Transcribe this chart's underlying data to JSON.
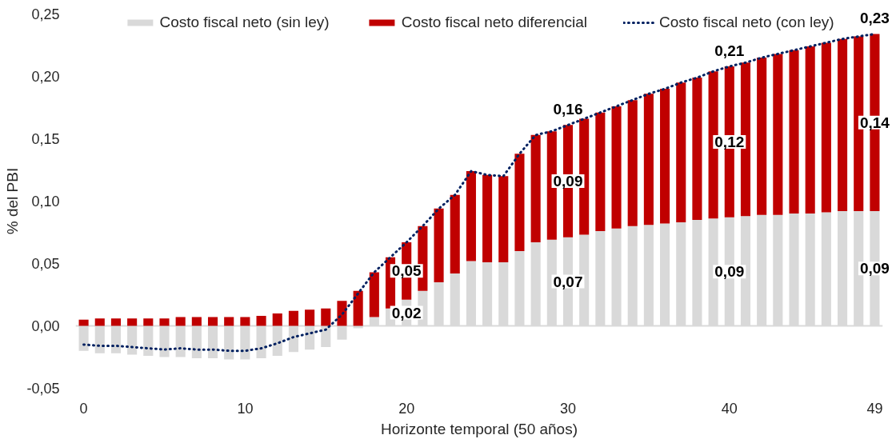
{
  "chart_data": {
    "type": "bar",
    "stacked": true,
    "xlabel": "Horizonte temporal (50 años)",
    "ylabel": "% del PBI",
    "legend": "top",
    "x": [
      0,
      1,
      2,
      3,
      4,
      5,
      6,
      7,
      8,
      9,
      10,
      11,
      12,
      13,
      14,
      15,
      16,
      17,
      18,
      19,
      20,
      21,
      22,
      23,
      24,
      25,
      26,
      27,
      28,
      29,
      30,
      31,
      32,
      33,
      34,
      35,
      36,
      37,
      38,
      39,
      40,
      41,
      42,
      43,
      44,
      45,
      46,
      47,
      48,
      49
    ],
    "xlim": [
      -0.5,
      49.5
    ],
    "xticks": [
      0,
      10,
      20,
      30,
      40,
      49
    ],
    "ylim": [
      -0.05,
      0.25
    ],
    "yticks": [
      {
        "value": -0.05,
        "label": "-0,05"
      },
      {
        "value": 0,
        "label": "0,00"
      },
      {
        "value": 0.05,
        "label": "0,05"
      },
      {
        "value": 0.1,
        "label": "0,10"
      },
      {
        "value": 0.15,
        "label": "0,15"
      },
      {
        "value": 0.2,
        "label": "0,20"
      },
      {
        "value": 0.25,
        "label": "0,25"
      }
    ],
    "ref_lines": [
      {
        "axis": "y",
        "value": 0,
        "color": "#d9d9d9"
      }
    ],
    "series": [
      {
        "name": "Costo fiscal neto (sin ley)",
        "color": "#d9d9d9",
        "values": [
          -0.02,
          -0.022,
          -0.022,
          -0.023,
          -0.024,
          -0.025,
          -0.025,
          -0.026,
          -0.026,
          -0.027,
          -0.027,
          -0.026,
          -0.024,
          -0.021,
          -0.019,
          -0.017,
          -0.011,
          -0.002,
          0.007,
          0.014,
          0.021,
          0.028,
          0.035,
          0.042,
          0.052,
          0.051,
          0.051,
          0.06,
          0.067,
          0.069,
          0.071,
          0.073,
          0.076,
          0.078,
          0.08,
          0.081,
          0.082,
          0.083,
          0.085,
          0.086,
          0.087,
          0.088,
          0.089,
          0.089,
          0.09,
          0.09,
          0.091,
          0.092,
          0.092,
          0.092
        ],
        "value_labels": [
          null,
          null,
          null,
          null,
          null,
          null,
          null,
          null,
          null,
          null,
          null,
          null,
          null,
          null,
          null,
          null,
          null,
          null,
          null,
          null,
          "0,02",
          null,
          null,
          null,
          null,
          null,
          null,
          null,
          null,
          null,
          "0,07",
          null,
          null,
          null,
          null,
          null,
          null,
          null,
          null,
          null,
          "0,09",
          null,
          null,
          null,
          null,
          null,
          null,
          null,
          null,
          "0,09"
        ]
      },
      {
        "name": "Costo fiscal neto diferencial",
        "color": "#c00000",
        "values": [
          0.005,
          0.006,
          0.006,
          0.006,
          0.006,
          0.006,
          0.007,
          0.007,
          0.007,
          0.007,
          0.007,
          0.008,
          0.01,
          0.012,
          0.013,
          0.014,
          0.02,
          0.028,
          0.036,
          0.041,
          0.046,
          0.052,
          0.059,
          0.063,
          0.072,
          0.07,
          0.069,
          0.078,
          0.086,
          0.087,
          0.09,
          0.093,
          0.095,
          0.098,
          0.101,
          0.105,
          0.108,
          0.112,
          0.114,
          0.118,
          0.121,
          0.123,
          0.126,
          0.129,
          0.131,
          0.134,
          0.136,
          0.138,
          0.14,
          0.142
        ],
        "value_labels": [
          null,
          null,
          null,
          null,
          null,
          null,
          null,
          null,
          null,
          null,
          null,
          null,
          null,
          null,
          null,
          null,
          null,
          null,
          null,
          null,
          "0,05",
          null,
          null,
          null,
          null,
          null,
          null,
          null,
          null,
          null,
          "0,09",
          null,
          null,
          null,
          null,
          null,
          null,
          null,
          null,
          null,
          "0,12",
          null,
          null,
          null,
          null,
          null,
          null,
          null,
          null,
          "0,14"
        ]
      },
      {
        "name": "Costo fiscal neto (con ley)",
        "type": "line",
        "line_style": "dotted",
        "color": "#002060",
        "values": [
          -0.015,
          -0.016,
          -0.016,
          -0.017,
          -0.018,
          -0.019,
          -0.018,
          -0.019,
          -0.019,
          -0.02,
          -0.02,
          -0.018,
          -0.014,
          -0.009,
          -0.006,
          -0.003,
          0.009,
          0.026,
          0.043,
          0.055,
          0.067,
          0.08,
          0.094,
          0.105,
          0.124,
          0.121,
          0.12,
          0.138,
          0.153,
          0.156,
          0.161,
          0.166,
          0.171,
          0.176,
          0.181,
          0.186,
          0.19,
          0.195,
          0.199,
          0.204,
          0.208,
          0.211,
          0.215,
          0.218,
          0.221,
          0.224,
          0.227,
          0.23,
          0.232,
          0.234
        ],
        "value_labels": [
          null,
          null,
          null,
          null,
          null,
          null,
          null,
          null,
          null,
          null,
          null,
          null,
          null,
          null,
          null,
          null,
          null,
          null,
          null,
          null,
          null,
          null,
          null,
          null,
          null,
          null,
          null,
          null,
          null,
          null,
          "0,16",
          null,
          null,
          null,
          null,
          null,
          null,
          null,
          null,
          null,
          "0,21",
          null,
          null,
          null,
          null,
          null,
          null,
          null,
          null,
          "0,23"
        ]
      }
    ]
  }
}
